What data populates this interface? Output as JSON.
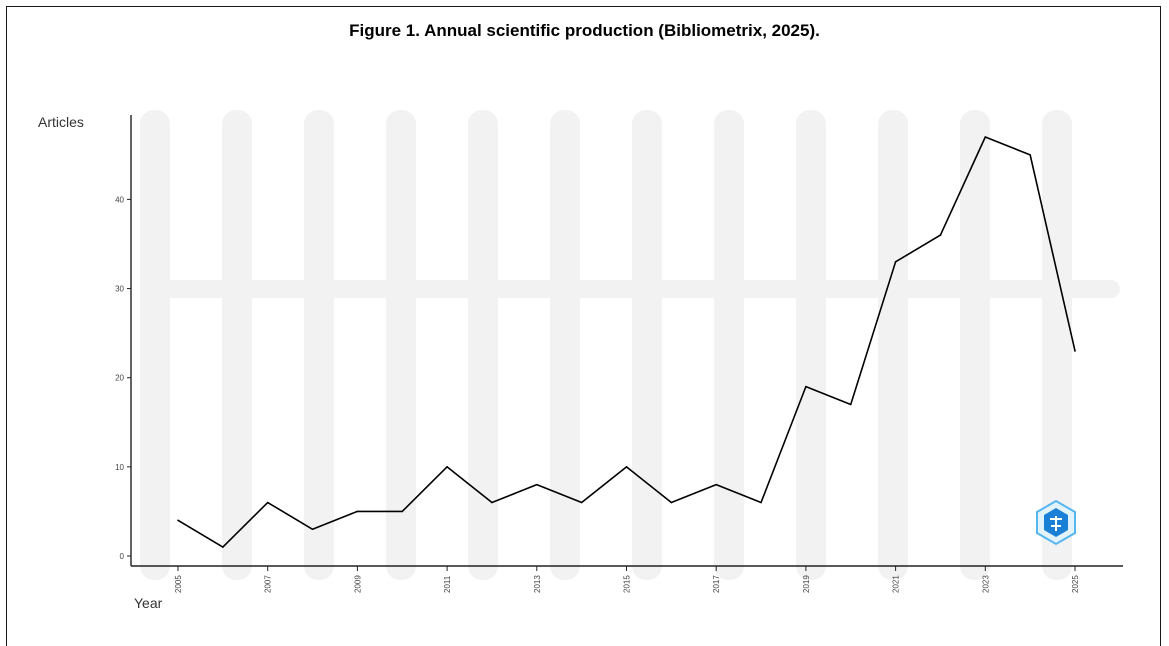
{
  "figure": {
    "title": "Figure 1. Annual scientific production (Bibliometrix, 2025)."
  },
  "chart_data": {
    "type": "line",
    "title": "",
    "xlabel": "Year",
    "ylabel": "Articles",
    "x": [
      2005,
      2006,
      2007,
      2008,
      2009,
      2010,
      2011,
      2012,
      2013,
      2014,
      2015,
      2016,
      2017,
      2018,
      2019,
      2020,
      2021,
      2022,
      2023,
      2024,
      2025
    ],
    "series": [
      {
        "values": [
          4,
          1,
          6,
          3,
          5,
          5,
          10,
          6,
          8,
          6,
          10,
          6,
          8,
          6,
          19,
          17,
          33,
          36,
          47,
          45,
          23
        ]
      }
    ],
    "xticks": [
      "2005",
      "2007",
      "2009",
      "2011",
      "2013",
      "2015",
      "2017",
      "2019",
      "2021",
      "2023",
      "2025"
    ],
    "yticks": [
      "0",
      "10",
      "20",
      "30",
      "40"
    ],
    "xlim": [
      2005,
      2025
    ],
    "ylim": [
      0,
      47
    ],
    "grid": false,
    "line_color": "#000000",
    "watermark_color": "#f2f2f2",
    "logo_colors": [
      "#1a7fd6",
      "#56b6f0"
    ]
  }
}
